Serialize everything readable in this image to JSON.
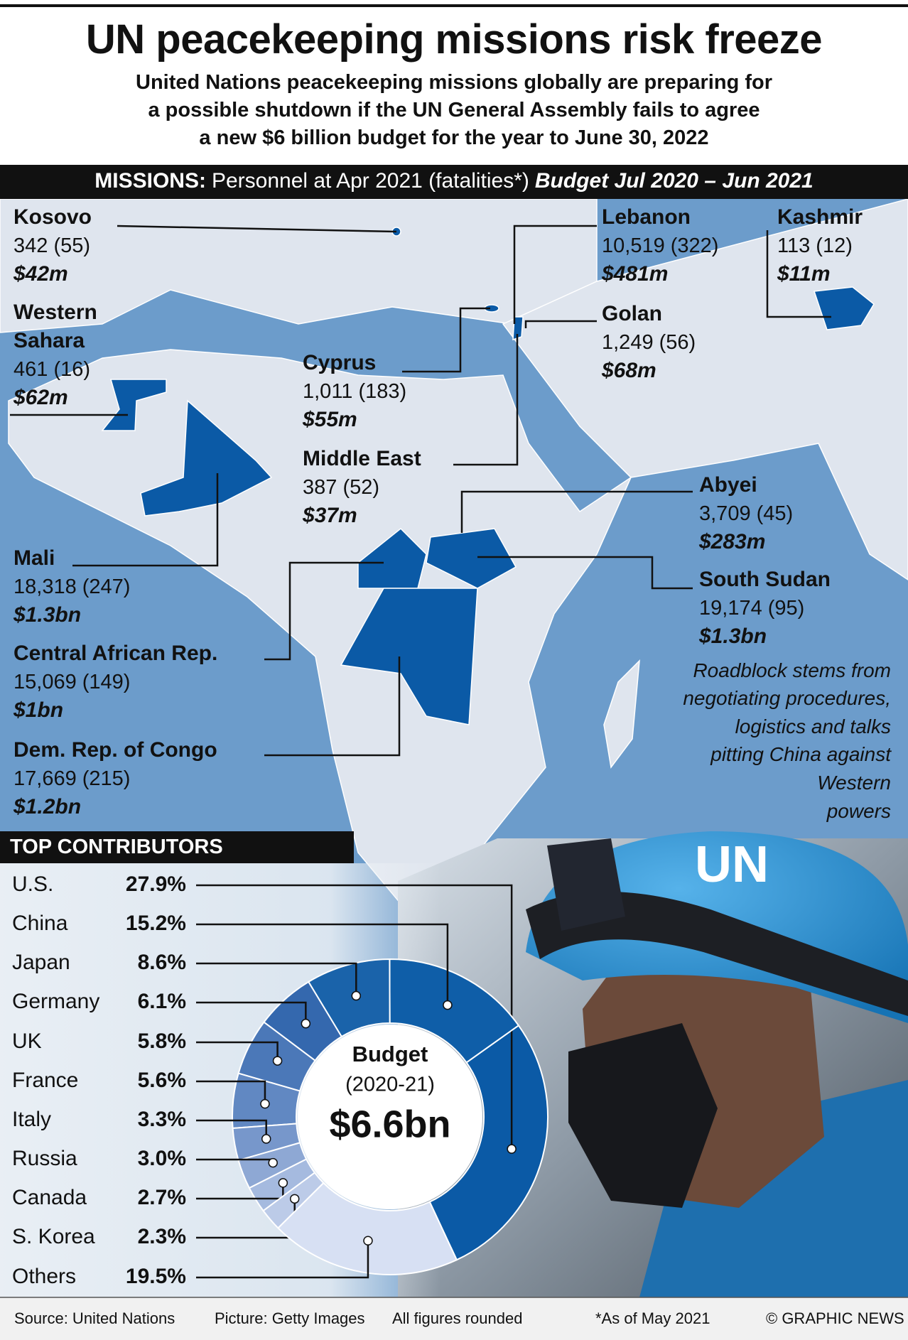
{
  "header": {
    "title": "UN peacekeeping missions risk freeze",
    "subtitle_lines": [
      "United Nations peacekeeping missions globally are preparing for",
      "a possible shutdown if the UN General Assembly fails to agree",
      "a new $6 billion budget for the year to June 30, 2022"
    ]
  },
  "missions_bar": {
    "heading": "MISSIONS:",
    "personnel": "Personnel at Apr 2021 (fatalities*)",
    "budget": "Budget Jul 2020 – Jun 2021"
  },
  "missions": [
    {
      "name": "Kosovo",
      "personnel": "342 (55)",
      "budget": "$42m"
    },
    {
      "name": "Western Sahara",
      "personnel": "461 (16)",
      "budget": "$62m"
    },
    {
      "name": "Mali",
      "personnel": "18,318 (247)",
      "budget": "$1.3bn"
    },
    {
      "name": "Central African Rep.",
      "personnel": "15,069 (149)",
      "budget": "$1bn"
    },
    {
      "name": "Dem. Rep. of Congo",
      "personnel": "17,669 (215)",
      "budget": "$1.2bn"
    },
    {
      "name": "Cyprus",
      "personnel": "1,011 (183)",
      "budget": "$55m"
    },
    {
      "name": "Middle East",
      "personnel": "387 (52)",
      "budget": "$37m"
    },
    {
      "name": "Lebanon",
      "personnel": "10,519 (322)",
      "budget": "$481m"
    },
    {
      "name": "Kashmir",
      "personnel": "113 (12)",
      "budget": "$11m"
    },
    {
      "name": "Golan",
      "personnel": "1,249 (56)",
      "budget": "$68m"
    },
    {
      "name": "Abyei",
      "personnel": "3,709 (45)",
      "budget": "$283m"
    },
    {
      "name": "South Sudan",
      "personnel": "19,174 (95)",
      "budget": "$1.3bn"
    }
  ],
  "note_lines": [
    "Roadblock stems from",
    "negotiating procedures,",
    "logistics and talks",
    "pitting China against",
    "Western",
    "powers"
  ],
  "picture": {
    "helmet_text": "UN"
  },
  "contributors_heading": "TOP CONTRIBUTORS",
  "chart_data": {
    "type": "donut",
    "categories": [
      "U.S.",
      "China",
      "Japan",
      "Germany",
      "UK",
      "France",
      "Italy",
      "Russia",
      "Canada",
      "S. Korea",
      "Others"
    ],
    "values": [
      27.9,
      15.2,
      8.6,
      6.1,
      5.8,
      5.6,
      3.3,
      3.0,
      2.7,
      2.3,
      19.5
    ],
    "value_labels": [
      "27.9%",
      "15.2%",
      "8.6%",
      "6.1%",
      "5.8%",
      "5.6%",
      "3.3%",
      "3.0%",
      "2.7%",
      "2.3%",
      "19.5%"
    ],
    "colors": [
      "#0b5aa6",
      "#0f5ea8",
      "#1a63aa",
      "#3468ae",
      "#4b78b8",
      "#6188c2",
      "#7797cb",
      "#8ea8d4",
      "#a5badf",
      "#bccbe8",
      "#d7e0f3"
    ],
    "center_label": "Budget",
    "center_sublabel": "(2020-21)",
    "center_value": "$6.6bn"
  },
  "footer": {
    "source": "Source: United Nations",
    "picture": "Picture: Getty Images",
    "rounding": "All figures rounded",
    "footnote": "*As of May 2021",
    "credit": "© GRAPHIC NEWS"
  }
}
